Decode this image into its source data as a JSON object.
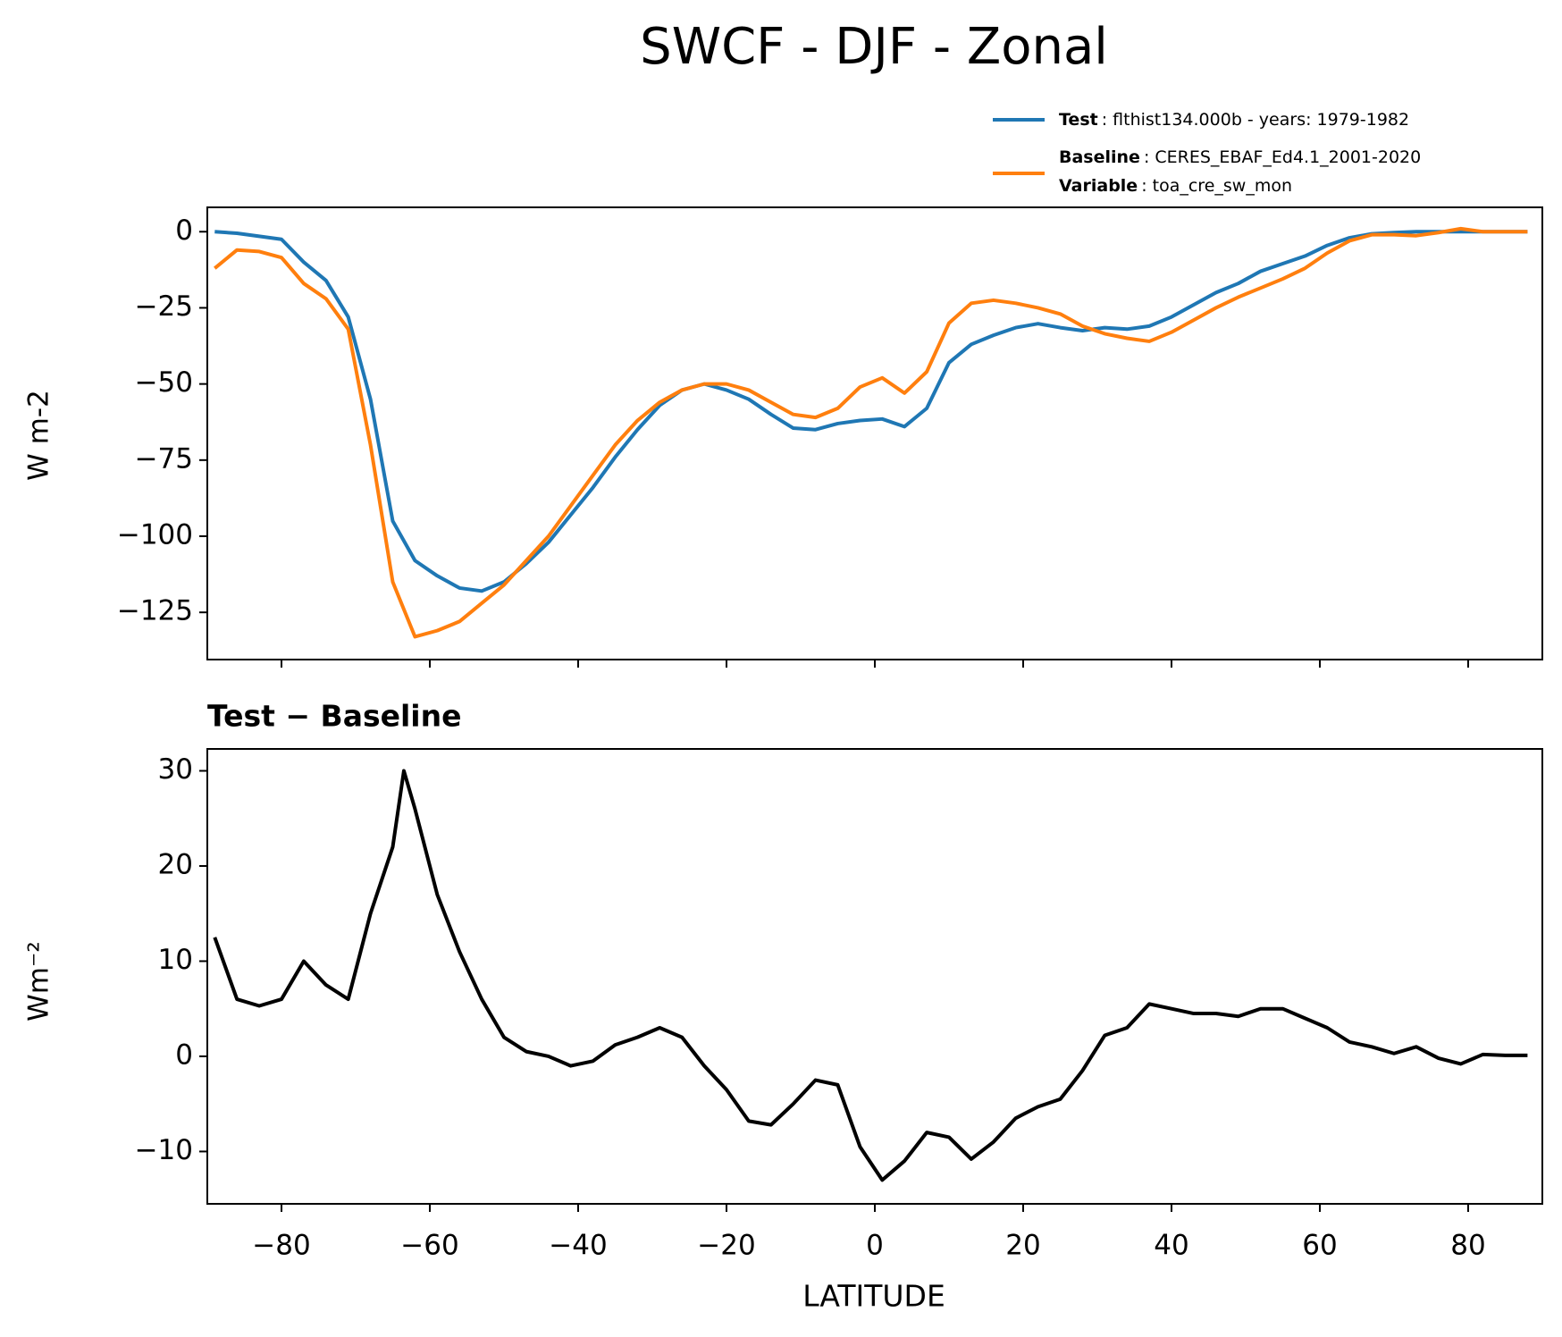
{
  "chart_data": [
    {
      "type": "line",
      "title": "SWCF - DJF - Zonal",
      "ylabel": "W m-2",
      "x": [
        -89,
        -86,
        -83,
        -80,
        -77,
        -74,
        -71,
        -68,
        -65,
        -62,
        -59,
        -56,
        -53,
        -50,
        -47,
        -44,
        -41,
        -38,
        -35,
        -32,
        -29,
        -26,
        -23,
        -20,
        -17,
        -14,
        -11,
        -8,
        -5,
        -2,
        1,
        4,
        7,
        10,
        13,
        16,
        19,
        22,
        25,
        28,
        31,
        34,
        37,
        40,
        43,
        46,
        49,
        52,
        55,
        58,
        61,
        64,
        67,
        70,
        73,
        76,
        79,
        82,
        85,
        88
      ],
      "series": [
        {
          "name": "Test",
          "description": ": flthist134.000b - years: 1979-1982",
          "color": "#1f77b4",
          "values": [
            0,
            -0.5,
            -1.5,
            -2.5,
            -10,
            -16,
            -28,
            -55,
            -95,
            -108,
            -113,
            -117,
            -118,
            -115,
            -109,
            -102,
            -93,
            -84,
            -74,
            -65,
            -57,
            -52,
            -50,
            -52,
            -55,
            -60,
            -64.5,
            -65,
            -63,
            -62,
            -61.5,
            -64,
            -58,
            -43,
            -37,
            -34,
            -31.5,
            -30.2,
            -31.5,
            -32.5,
            -31.5,
            -32,
            -31,
            -28,
            -24,
            -20,
            -17,
            -13,
            -10.5,
            -8,
            -4.5,
            -2,
            -0.7,
            -0.3,
            0,
            0,
            0,
            0,
            0,
            0
          ]
        },
        {
          "name": "Baseline",
          "description": ": CERES_EBAF_Ed4.1_2001-2020",
          "extra_name": "Variable",
          "extra_description": ": toa_cre_sw_mon",
          "color": "#ff7f0e",
          "values": [
            -12,
            -6,
            -6.5,
            -8.5,
            -17,
            -22,
            -32,
            -70,
            -115,
            -133,
            -131,
            -128,
            -122,
            -116,
            -108,
            -100,
            -90,
            -80,
            -70,
            -62,
            -56,
            -52,
            -50,
            -50,
            -52,
            -56,
            -60,
            -61,
            -58,
            -51,
            -48,
            -53,
            -46,
            -30,
            -23.5,
            -22.5,
            -23.5,
            -25,
            -27,
            -31,
            -33.5,
            -35,
            -36,
            -33,
            -29,
            -25,
            -21.5,
            -18.5,
            -15.5,
            -12,
            -7,
            -3,
            -1,
            -1,
            -1.3,
            -0.3,
            1,
            0,
            0,
            0
          ]
        }
      ],
      "xlim": [
        -90,
        90
      ],
      "xticks": [
        -80,
        -60,
        -40,
        -20,
        0,
        20,
        40,
        60,
        80
      ],
      "ylim": [
        -140.5,
        8
      ],
      "yticks": [
        {
          "value": 0,
          "label": "0"
        },
        {
          "value": -25,
          "label": "−25"
        },
        {
          "value": -50,
          "label": "−50"
        },
        {
          "value": -75,
          "label": "−75"
        },
        {
          "value": -100,
          "label": "−100"
        },
        {
          "value": -125,
          "label": "−125"
        }
      ],
      "legend": "upper right"
    },
    {
      "type": "line",
      "subtitle": "Test − Baseline",
      "ylabel": "Wm⁻²",
      "xlabel": "LATITUDE",
      "x": [
        -89,
        -86,
        -83,
        -80,
        -77,
        -74,
        -71,
        -68,
        -65,
        -63.5,
        -62,
        -59,
        -56,
        -53,
        -50,
        -47,
        -44,
        -41,
        -38,
        -35,
        -32,
        -29,
        -26,
        -23,
        -20,
        -17,
        -14,
        -11,
        -8,
        -5,
        -2,
        1,
        4,
        7,
        10,
        13,
        16,
        19,
        22,
        25,
        28,
        31,
        34,
        37,
        40,
        43,
        46,
        49,
        52,
        55,
        58,
        61,
        64,
        67,
        70,
        73,
        76,
        79,
        82,
        85,
        88
      ],
      "series": [
        {
          "name": "Test − Baseline",
          "color": "#000000",
          "values": [
            12.5,
            6,
            5.3,
            6,
            10,
            7.5,
            6,
            15,
            22,
            30,
            26,
            17,
            11,
            6,
            2,
            0.5,
            0,
            -1,
            -0.5,
            1.2,
            2,
            3,
            2,
            -1,
            -3.5,
            -6.8,
            -7.2,
            -5,
            -2.5,
            -3,
            -9.5,
            -13,
            -11,
            -8,
            -8.5,
            -10.8,
            -9,
            -6.5,
            -5.3,
            -4.5,
            -1.5,
            2.2,
            3,
            5.5,
            5,
            4.5,
            4.5,
            4.2,
            5,
            5,
            4,
            3,
            1.5,
            1,
            0.3,
            1,
            -0.2,
            -0.8,
            0.2,
            0.1,
            0.1
          ]
        }
      ],
      "xlim": [
        -90,
        90
      ],
      "xticks": [
        {
          "value": -80,
          "label": "−80"
        },
        {
          "value": -60,
          "label": "−60"
        },
        {
          "value": -40,
          "label": "−40"
        },
        {
          "value": -20,
          "label": "−20"
        },
        {
          "value": 0,
          "label": "0"
        },
        {
          "value": 20,
          "label": "20"
        },
        {
          "value": 40,
          "label": "40"
        },
        {
          "value": 60,
          "label": "60"
        },
        {
          "value": 80,
          "label": "80"
        }
      ],
      "ylim": [
        -15.5,
        32.3
      ],
      "yticks": [
        30,
        20,
        10,
        {
          "value": 0,
          "label": "0"
        },
        {
          "value": -10,
          "label": "−10"
        }
      ]
    }
  ]
}
